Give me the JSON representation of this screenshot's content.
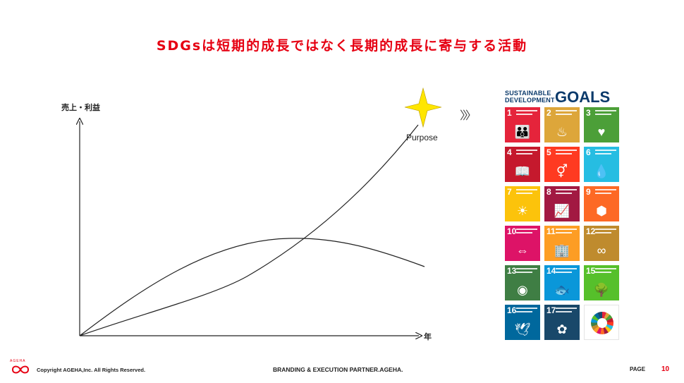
{
  "title": "SDGsは短期的成長ではなく長期的成長に寄与する活動",
  "diagram": {
    "y_axis_label": "売上・利益",
    "x_axis_label": "年",
    "purpose_label": "Purpose",
    "arrow_glyph": "〉〉〉"
  },
  "sdg_panel": {
    "word1": "SUSTAINABLE",
    "word2": "DEVELOPMENT",
    "goals_word": "GOALS",
    "goals": [
      {
        "number": "1",
        "color": "#e5243b",
        "icon_name": "family-icon",
        "glyph": "👪"
      },
      {
        "number": "2",
        "color": "#dda63a",
        "icon_name": "bowl-icon",
        "glyph": "♨"
      },
      {
        "number": "3",
        "color": "#4c9f38",
        "icon_name": "heartbeat-icon",
        "glyph": "♥"
      },
      {
        "number": "4",
        "color": "#c5192d",
        "icon_name": "book-pencil-icon",
        "glyph": "📖"
      },
      {
        "number": "5",
        "color": "#ff3a21",
        "icon_name": "gender-equality-icon",
        "glyph": "⚥"
      },
      {
        "number": "6",
        "color": "#26bde2",
        "icon_name": "water-drop-icon",
        "glyph": "💧"
      },
      {
        "number": "7",
        "color": "#fcc30b",
        "icon_name": "sun-power-icon",
        "glyph": "☀"
      },
      {
        "number": "8",
        "color": "#a21942",
        "icon_name": "growth-chart-icon",
        "glyph": "📈"
      },
      {
        "number": "9",
        "color": "#fd6925",
        "icon_name": "cubes-icon",
        "glyph": "⬢"
      },
      {
        "number": "10",
        "color": "#dd1367",
        "icon_name": "equality-arrows-icon",
        "glyph": "⇔"
      },
      {
        "number": "11",
        "color": "#fd9d24",
        "icon_name": "city-buildings-icon",
        "glyph": "🏢"
      },
      {
        "number": "12",
        "color": "#bf8b2e",
        "icon_name": "infinity-icon",
        "glyph": "∞"
      },
      {
        "number": "13",
        "color": "#3f7e44",
        "icon_name": "eye-globe-icon",
        "glyph": "◉"
      },
      {
        "number": "14",
        "color": "#0a97d9",
        "icon_name": "fish-icon",
        "glyph": "🐟"
      },
      {
        "number": "15",
        "color": "#56c02b",
        "icon_name": "tree-bird-icon",
        "glyph": "🌳"
      },
      {
        "number": "16",
        "color": "#00689d",
        "icon_name": "dove-icon",
        "glyph": "🕊"
      },
      {
        "number": "17",
        "color": "#19486a",
        "icon_name": "flower-rings-icon",
        "glyph": "✿"
      }
    ]
  },
  "footer": {
    "logo_text": "AGEHA",
    "copyright": "Copyright AGEHA,Inc. All Rights Reserved.",
    "branding": "BRANDING & EXECUTION PARTNER.AGEHA.",
    "page_label": "PAGE",
    "page_number": "10"
  },
  "colors": {
    "accent": "#e60012",
    "star": "#ffe600",
    "sdg_blue": "#0b3a6b"
  }
}
